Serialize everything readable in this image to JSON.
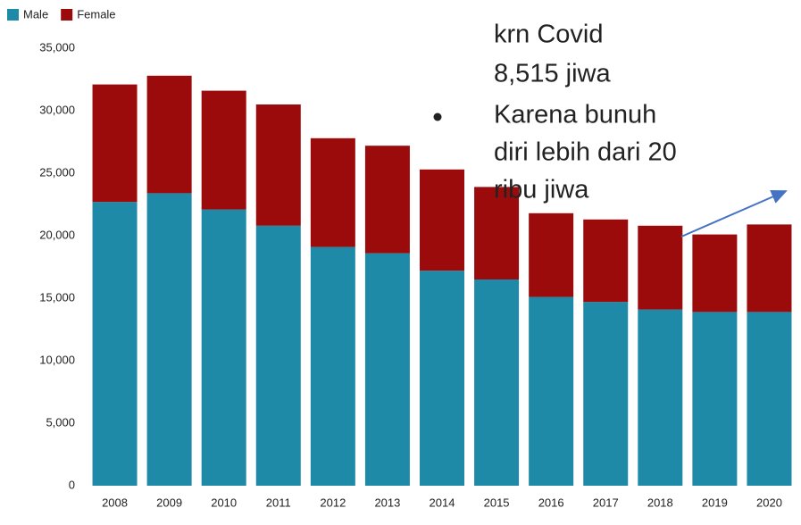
{
  "chart_data": {
    "type": "stacked_bar",
    "categories": [
      "2008",
      "2009",
      "2010",
      "2011",
      "2012",
      "2013",
      "2014",
      "2015",
      "2016",
      "2017",
      "2018",
      "2019",
      "2020"
    ],
    "series": [
      {
        "name": "Male",
        "color": "#1f89a8",
        "values": [
          22700,
          23400,
          22100,
          20800,
          19100,
          18600,
          17200,
          16500,
          15100,
          14700,
          14100,
          13900,
          13900
        ]
      },
      {
        "name": "Female",
        "color": "#9b0b0c",
        "values": [
          9400,
          9400,
          9500,
          9700,
          8700,
          8600,
          8100,
          7400,
          6700,
          6600,
          6700,
          6200,
          7000
        ]
      }
    ],
    "ylim": [
      0,
      35000
    ],
    "yticks": [
      {
        "value": 0,
        "label": "0"
      },
      {
        "value": 5000,
        "label": "5,000"
      },
      {
        "value": 10000,
        "label": "10,000"
      },
      {
        "value": 15000,
        "label": "15,000"
      },
      {
        "value": 20000,
        "label": "20,000"
      },
      {
        "value": 25000,
        "label": "25,000"
      },
      {
        "value": 30000,
        "label": "30,000"
      },
      {
        "value": 35000,
        "label": "35,000"
      }
    ],
    "legend": "top-left",
    "annotation": {
      "lines": [
        "krn  Covid",
        "8,515 jiwa"
      ],
      "bullet_lines": [
        "Karena bunuh",
        "diri  lebih dari 20",
        "ribu  jiwa"
      ]
    }
  }
}
